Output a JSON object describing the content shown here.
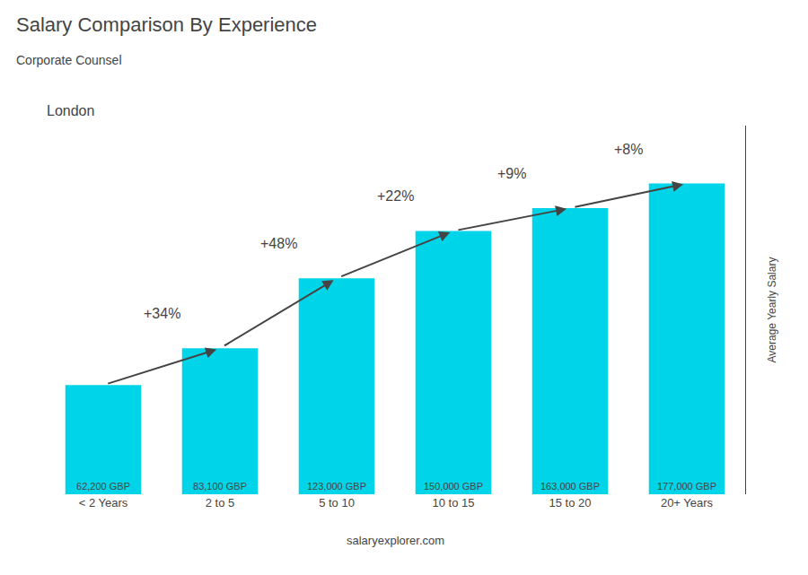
{
  "chart_data": {
    "type": "bar",
    "title": "Salary Comparison By Experience",
    "subtitle": "Corporate Counsel",
    "ylabel": "Average Yearly Salary",
    "categories": [
      "< 2 Years",
      "2 to 5",
      "5 to 10",
      "10 to 15",
      "15 to 20",
      "20+ Years"
    ],
    "values": [
      62200,
      83100,
      123000,
      150000,
      163000,
      177000
    ],
    "value_labels": [
      "62,200 GBP",
      "83,100 GBP",
      "123,000 GBP",
      "150,000 GBP",
      "163,000 GBP",
      "177,000 GBP"
    ],
    "data_labels": true,
    "color": "#00d4e8",
    "ylim": [
      0,
      210000
    ],
    "grid": false,
    "tick_labels": "x",
    "annotations": [
      {
        "text": "London"
      },
      {
        "text": "+34%",
        "x": "2 to 5"
      },
      {
        "text": "+48%",
        "x": "5 to 10"
      },
      {
        "text": "+22%",
        "x": "10 to 15"
      },
      {
        "text": "+9%",
        "x": "15 to 20"
      },
      {
        "text": "+8%",
        "x": "20+ Years"
      },
      {
        "text": "salaryexplorer.com"
      }
    ]
  }
}
